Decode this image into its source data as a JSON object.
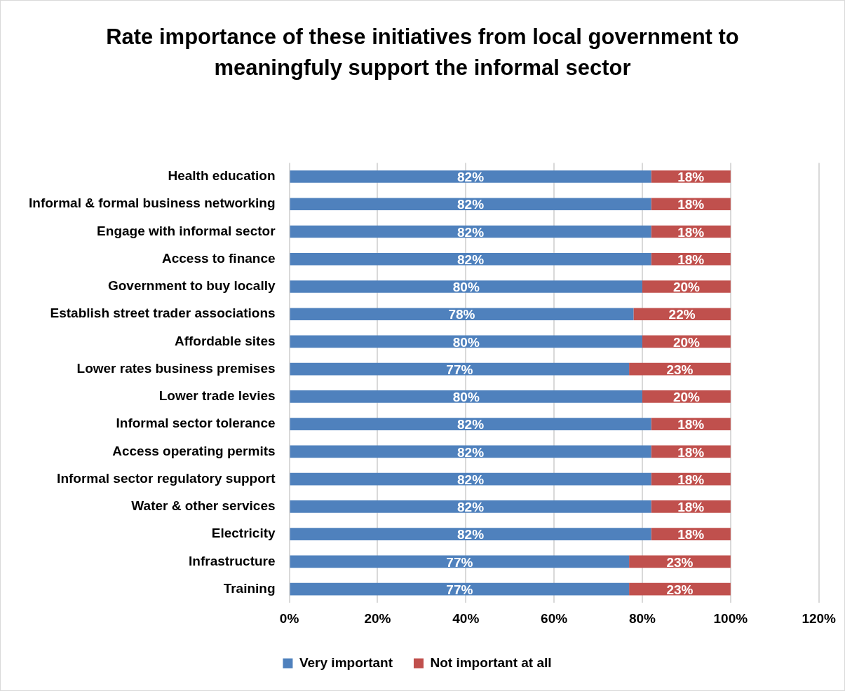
{
  "chart_data": {
    "type": "bar",
    "title": "Rate importance of these initiatives from local government to meaningfuly support the informal sector",
    "orientation": "horizontal",
    "stacked": true,
    "categories": [
      "Health education",
      "Informal & formal business networking",
      "Engage with informal sector",
      "Access to finance",
      "Government to buy locally",
      "Establish street trader associations",
      "Affordable sites",
      "Lower rates business premises",
      "Lower trade levies",
      "Informal sector tolerance",
      "Access operating permits",
      "Informal sector regulatory support",
      "Water & other services",
      "Electricity",
      "Infrastructure",
      "Training"
    ],
    "series": [
      {
        "name": "Very important",
        "color": "#4f81bd",
        "values": [
          82,
          82,
          82,
          82,
          80,
          78,
          80,
          77,
          80,
          82,
          82,
          82,
          82,
          82,
          77,
          77
        ],
        "value_labels": [
          "82%",
          "82%",
          "82%",
          "82%",
          "80%",
          "78%",
          "80%",
          "77%",
          "80%",
          "82%",
          "82%",
          "82%",
          "82%",
          "82%",
          "77%",
          "77%"
        ]
      },
      {
        "name": "Not important at all",
        "color": "#c0504d",
        "values": [
          18,
          18,
          18,
          18,
          20,
          22,
          20,
          23,
          20,
          18,
          18,
          18,
          18,
          18,
          23,
          23
        ],
        "value_labels": [
          "18%",
          "18%",
          "18%",
          "18%",
          "20%",
          "22%",
          "20%",
          "23%",
          "20%",
          "18%",
          "18%",
          "18%",
          "18%",
          "18%",
          "23%",
          "23%"
        ]
      }
    ],
    "xlim": [
      0,
      120
    ],
    "xticks": [
      {
        "value": 0,
        "label": "0%"
      },
      {
        "value": 20,
        "label": "20%"
      },
      {
        "value": 40,
        "label": "40%"
      },
      {
        "value": 60,
        "label": "60%"
      },
      {
        "value": 80,
        "label": "80%"
      },
      {
        "value": 100,
        "label": "100%"
      },
      {
        "value": 120,
        "label": "120%"
      }
    ],
    "grid": "x",
    "legend": "bottom"
  }
}
